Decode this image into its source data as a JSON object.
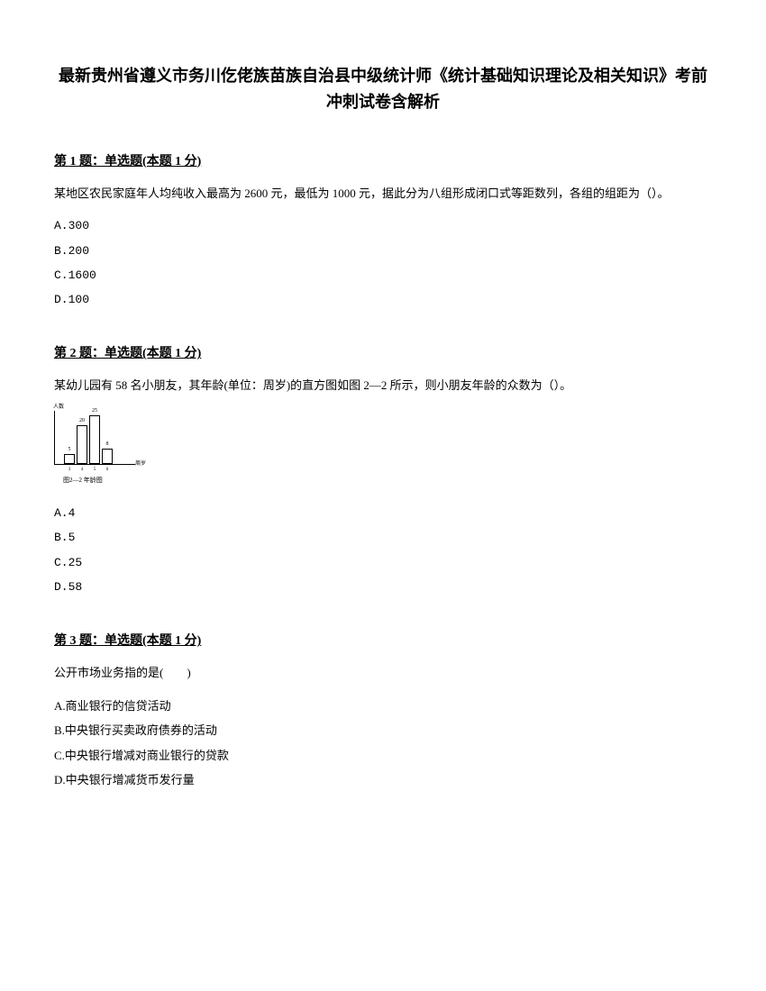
{
  "title": "最新贵州省遵义市务川仡佬族苗族自治县中级统计师《统计基础知识理论及相关知识》考前冲刺试卷含解析",
  "questions": [
    {
      "header": "第 1 题：单选题(本题 1 分)",
      "text": "某地区农民家庭年人均纯收入最高为 2600 元，最低为 1000 元，据此分为八组形成闭口式等距数列，各组的组距为（）。",
      "options": [
        "A.300",
        "B.200",
        "C.1600",
        "D.100"
      ]
    },
    {
      "header": "第 2 题：单选题(本题 1 分)",
      "text": "某幼儿园有 58 名小朋友，其年龄(单位：周岁)的直方图如图 2—2 所示，则小朋友年龄的众数为（）。",
      "options": [
        "A.4",
        "B.5",
        "C.25",
        "D.58"
      ]
    },
    {
      "header": "第 3 题：单选题(本题 1 分)",
      "text": "公开市场业务指的是(　　)",
      "options": [
        "A.商业银行的信贷活动",
        "B.中央银行买卖政府债券的活动",
        "C.中央银行增减对商业银行的贷款",
        "D.中央银行增减货币发行量"
      ]
    }
  ],
  "chart": {
    "caption": "图2—2 年龄图",
    "y_label": "人数",
    "x_label": "周岁",
    "bars": [
      {
        "height_pct": 18,
        "left": 10,
        "label": "5"
      },
      {
        "height_pct": 72,
        "left": 24,
        "label": "20"
      },
      {
        "height_pct": 90,
        "left": 38,
        "label": "25"
      },
      {
        "height_pct": 28,
        "left": 52,
        "label": "8"
      }
    ],
    "x_ticks": [
      {
        "left": 16,
        "label": "3"
      },
      {
        "left": 30,
        "label": "4"
      },
      {
        "left": 44,
        "label": "5"
      },
      {
        "left": 58,
        "label": "6"
      }
    ]
  }
}
